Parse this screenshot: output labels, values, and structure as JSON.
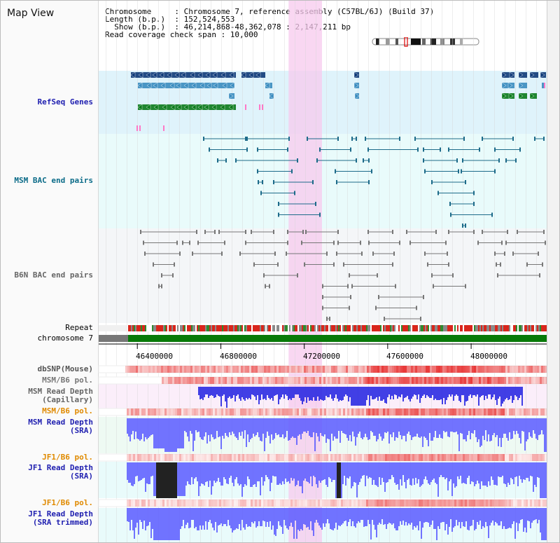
{
  "window": {
    "title": "Map View"
  },
  "header": {
    "lines": [
      "Chromosome     : Chromosome 7, reference assembly (C57BL/6J) (Build 37)",
      "Length (b.p.)  : 152,524,553",
      "  Show (b.p.)  : 46,214,868-48,362,078 : 2,147,211 bp",
      "Read coverage check span : 10,000"
    ]
  },
  "tracks": {
    "refseq": "RefSeq Genes",
    "msm_bac": "MSM BAC end pairs",
    "b6n_bac": "B6N BAC end pairs",
    "repeat": "Repeat",
    "chromosome": "chromosome 7",
    "dbsnp": "dbSNP(Mouse)",
    "msm_b6_pol_1": "MSM/B6 pol.",
    "msm_depth_cap_1": "MSM Read Depth",
    "msm_depth_cap_2": "(Capillary)",
    "msm_b6_pol_2": "MSM/B6 pol.",
    "msm_depth_sra_1": "MSM Read Depth",
    "msm_depth_sra_2": "(SRA)",
    "jf1_b6_pol_1": "JF1/B6 pol.",
    "jf1_depth_sra_1": "JF1 Read Depth",
    "jf1_depth_sra_2": "(SRA)",
    "jf1_b6_pol_2": "JF1/B6 pol.",
    "jf1_depth_trim_1": "JF1 Read Depth",
    "jf1_depth_trim_2": "(SRA trimmed)"
  },
  "axis": {
    "ticks": [
      "46400000",
      "46800000",
      "47200000",
      "47600000",
      "48000000"
    ],
    "tick_values": [
      46400000,
      46800000,
      47200000,
      47600000,
      48000000
    ]
  },
  "view_range": {
    "start": 46214868,
    "end": 48362078
  },
  "highlight_range": {
    "start": 47125000,
    "end": 47285000
  },
  "colors": {
    "refseq_bg": "#dff3fb",
    "bac_bg": "#e9fbfb",
    "b6n_bg": "#f4f6f8",
    "highlight": "#f7c9ee",
    "gene_dark": "#0e3a78",
    "gene_mid": "#3a8cbf",
    "gene_green": "#0a7a1a",
    "msm_pair": "#1d6b8a",
    "b6n_pair": "#777777",
    "chrom_green": "#087a08",
    "depth_blue": "#2020e0",
    "pol_red": "#e83a3a",
    "label_blue": "#1f1fb0",
    "label_orange": "#e08a00",
    "label_teal": "#0b6b88"
  }
}
